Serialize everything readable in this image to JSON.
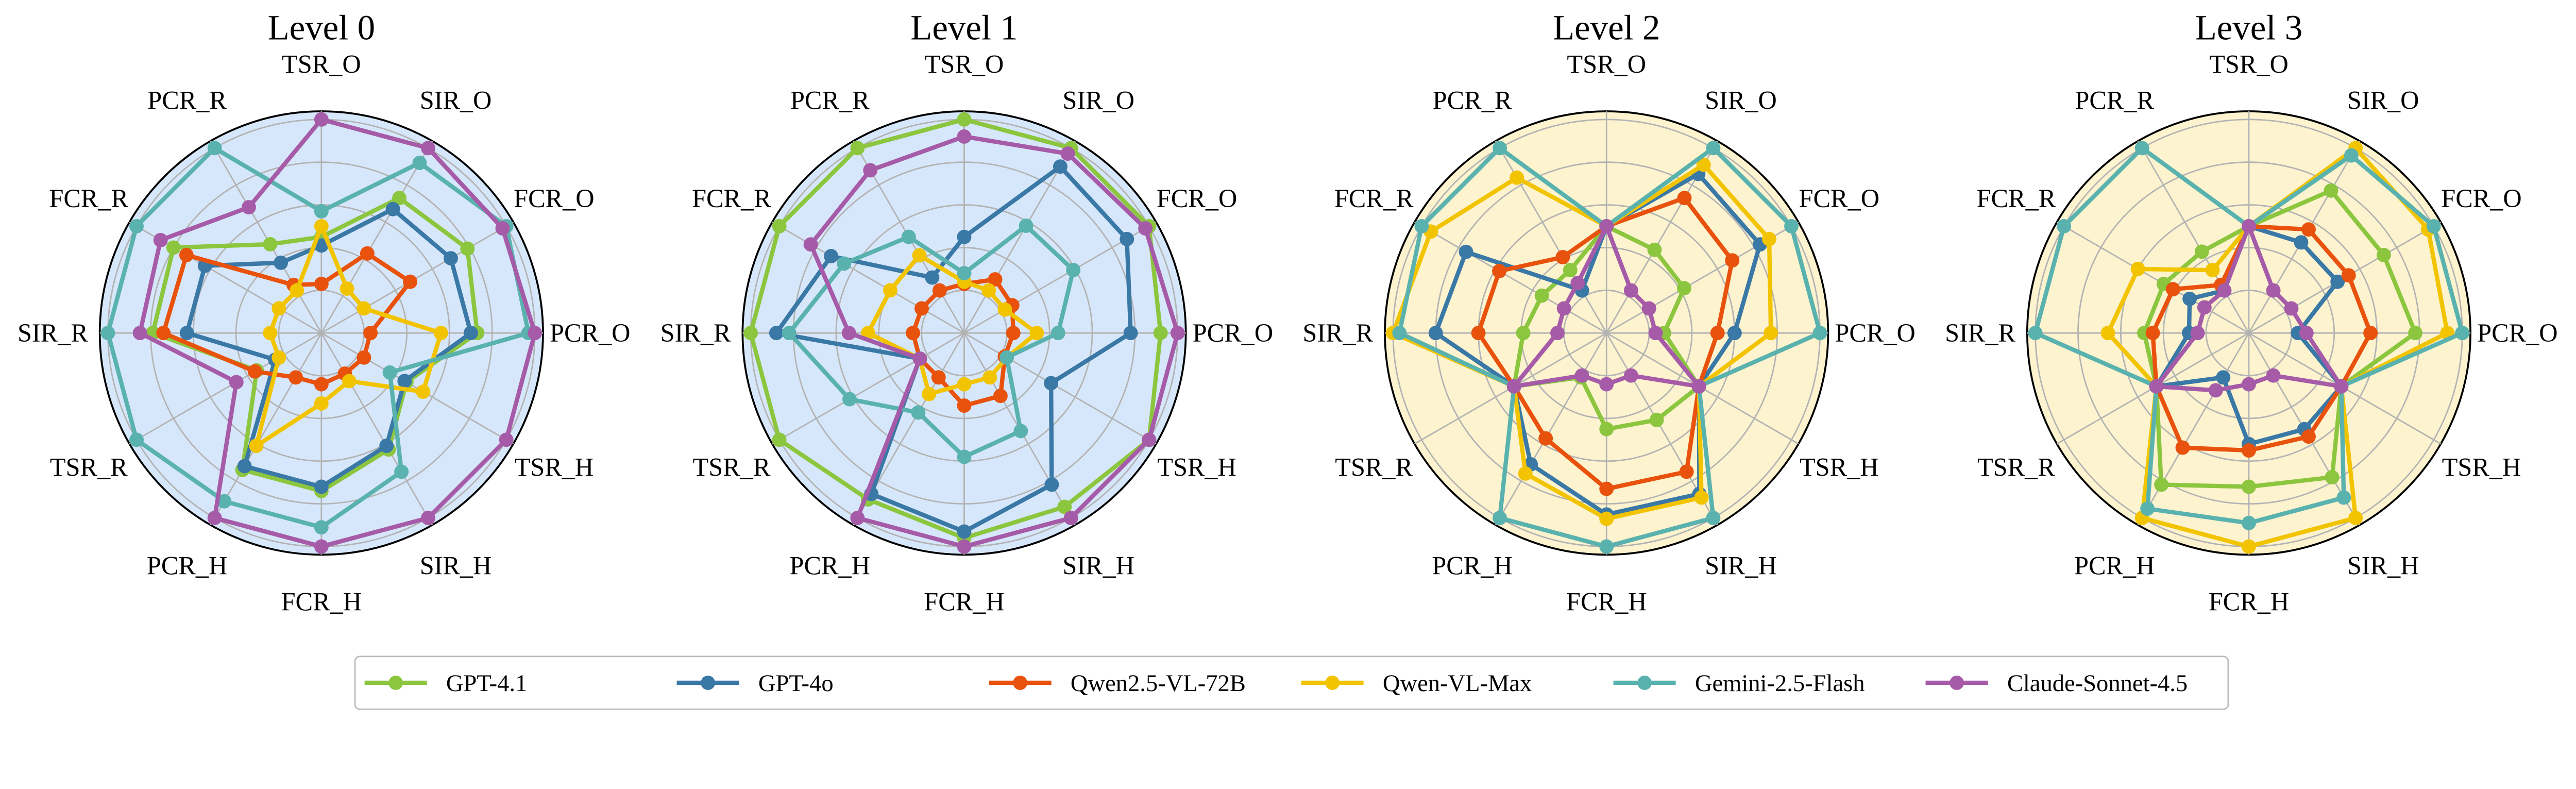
{
  "axes": [
    "TSR_O",
    "SIR_O",
    "FCR_O",
    "PCR_O",
    "TSR_H",
    "SIR_H",
    "FCR_H",
    "PCR_H",
    "TSR_R",
    "SIR_R",
    "FCR_R",
    "PCR_R"
  ],
  "legend": [
    {
      "name": "GPT-4.1",
      "color": "#8cc63f"
    },
    {
      "name": "GPT-4o",
      "color": "#3a78a6"
    },
    {
      "name": "Qwen2.5-VL-72B",
      "color": "#e8520c"
    },
    {
      "name": "Qwen-VL-Max",
      "color": "#f2c400"
    },
    {
      "name": "Gemini-2.5-Flash",
      "color": "#5ab2ae"
    },
    {
      "name": "Claude-Sonnet-4.5",
      "color": "#a65ba8"
    }
  ],
  "chart_data": [
    {
      "type": "radar",
      "title": "Level 0",
      "background": "#d7e7fb",
      "rlim": [
        0,
        1
      ],
      "grid": true,
      "series": [
        {
          "name": "GPT-4.1",
          "values": [
            0.45,
            0.73,
            0.79,
            0.73,
            0.46,
            0.63,
            0.74,
            0.74,
            0.35,
            0.79,
            0.8,
            0.48
          ]
        },
        {
          "name": "GPT-4o",
          "values": [
            0.41,
            0.67,
            0.7,
            0.7,
            0.45,
            0.61,
            0.72,
            0.72,
            0.25,
            0.63,
            0.63,
            0.38
          ]
        },
        {
          "name": "Qwen2.5-VL-72B",
          "values": [
            0.23,
            0.43,
            0.48,
            0.23,
            0.23,
            0.22,
            0.24,
            0.24,
            0.36,
            0.74,
            0.73,
            0.26
          ]
        },
        {
          "name": "Qwen-VL-Max",
          "values": [
            0.5,
            0.24,
            0.23,
            0.56,
            0.55,
            0.26,
            0.33,
            0.61,
            0.23,
            0.24,
            0.23,
            0.23
          ]
        },
        {
          "name": "Gemini-2.5-Flash",
          "values": [
            0.57,
            0.92,
            1.0,
            0.97,
            0.37,
            0.75,
            0.91,
            0.91,
            1.0,
            1.0,
            1.0,
            1.0
          ]
        },
        {
          "name": "Claude-Sonnet-4.5",
          "values": [
            1.0,
            1.0,
            0.98,
            1.0,
            1.0,
            1.0,
            1.0,
            1.0,
            0.46,
            0.85,
            0.87,
            0.68
          ]
        }
      ]
    },
    {
      "type": "radar",
      "title": "Level 1",
      "background": "#d7e7fb",
      "rlim": [
        0,
        1
      ],
      "grid": true,
      "series": [
        {
          "name": "GPT-4.1",
          "values": [
            1.0,
            1.0,
            1.0,
            0.92,
            1.0,
            0.94,
            0.96,
            0.9,
            1.0,
            1.0,
            1.0,
            1.0
          ]
        },
        {
          "name": "GPT-4o",
          "values": [
            0.45,
            0.9,
            0.88,
            0.78,
            0.47,
            0.82,
            0.93,
            0.87,
            0.24,
            0.88,
            0.72,
            0.3
          ]
        },
        {
          "name": "Qwen2.5-VL-72B",
          "values": [
            0.23,
            0.29,
            0.26,
            0.23,
            0.22,
            0.34,
            0.34,
            0.24,
            0.24,
            0.24,
            0.23,
            0.23
          ]
        },
        {
          "name": "Qwen-VL-Max",
          "values": [
            0.24,
            0.23,
            0.22,
            0.34,
            0.23,
            0.24,
            0.24,
            0.33,
            0.24,
            0.45,
            0.4,
            0.42
          ]
        },
        {
          "name": "Gemini-2.5-Flash",
          "values": [
            0.28,
            0.58,
            0.59,
            0.44,
            0.23,
            0.53,
            0.58,
            0.43,
            0.62,
            0.82,
            0.65,
            0.52
          ]
        },
        {
          "name": "Claude-Sonnet-4.5",
          "values": [
            0.92,
            0.97,
            0.98,
            1.0,
            1.0,
            1.0,
            1.0,
            1.0,
            0.24,
            0.54,
            0.83,
            0.88
          ]
        }
      ]
    },
    {
      "type": "radar",
      "title": "Level 2",
      "background": "#fdf3cf",
      "rlim": [
        0,
        1
      ],
      "grid": true,
      "series": [
        {
          "name": "GPT-4.1",
          "values": [
            0.5,
            0.45,
            0.42,
            0.27,
            0.5,
            0.47,
            0.45,
            0.24,
            0.5,
            0.39,
            0.35,
            0.34
          ]
        },
        {
          "name": "GPT-4o",
          "values": [
            0.5,
            0.86,
            0.83,
            0.6,
            0.5,
            0.87,
            0.85,
            0.71,
            0.5,
            0.8,
            0.76,
            0.23
          ]
        },
        {
          "name": "Qwen2.5-VL-72B",
          "values": [
            0.5,
            0.73,
            0.68,
            0.52,
            0.5,
            0.75,
            0.73,
            0.57,
            0.5,
            0.6,
            0.58,
            0.41
          ]
        },
        {
          "name": "Qwen-VL-Max",
          "values": [
            0.5,
            0.91,
            0.88,
            0.77,
            0.5,
            0.89,
            0.87,
            0.76,
            0.5,
            1.0,
            0.95,
            0.84
          ]
        },
        {
          "name": "Gemini-2.5-Flash",
          "values": [
            0.5,
            1.0,
            1.0,
            1.0,
            0.5,
            1.0,
            1.0,
            1.0,
            0.5,
            0.97,
            1.0,
            1.0
          ]
        },
        {
          "name": "Claude-Sonnet-4.5",
          "values": [
            0.5,
            0.23,
            0.23,
            0.23,
            0.5,
            0.23,
            0.24,
            0.23,
            0.5,
            0.23,
            0.23,
            0.27
          ]
        }
      ]
    },
    {
      "type": "radar",
      "title": "Level 3",
      "background": "#fdf3cf",
      "rlim": [
        0,
        1
      ],
      "grid": true,
      "series": [
        {
          "name": "GPT-4.1",
          "values": [
            0.5,
            0.77,
            0.73,
            0.78,
            0.5,
            0.78,
            0.72,
            0.82,
            0.5,
            0.49,
            0.46,
            0.44
          ]
        },
        {
          "name": "GPT-4o",
          "values": [
            0.5,
            0.49,
            0.48,
            0.23,
            0.5,
            0.52,
            0.52,
            0.24,
            0.5,
            0.28,
            0.32,
            0.23
          ]
        },
        {
          "name": "Qwen2.5-VL-72B",
          "values": [
            0.5,
            0.56,
            0.54,
            0.57,
            0.5,
            0.56,
            0.55,
            0.62,
            0.5,
            0.45,
            0.41,
            0.26
          ]
        },
        {
          "name": "Qwen-VL-Max",
          "values": [
            0.5,
            1.0,
            0.97,
            0.93,
            0.5,
            1.0,
            1.0,
            1.0,
            0.5,
            0.66,
            0.6,
            0.34
          ]
        },
        {
          "name": "Gemini-2.5-Flash",
          "values": [
            0.5,
            0.96,
            1.0,
            1.0,
            0.5,
            0.89,
            0.89,
            0.95,
            0.5,
            1.0,
            1.0,
            1.0
          ]
        },
        {
          "name": "Claude-Sonnet-4.5",
          "values": [
            0.5,
            0.23,
            0.23,
            0.27,
            0.5,
            0.23,
            0.24,
            0.31,
            0.5,
            0.24,
            0.24,
            0.23
          ]
        }
      ]
    }
  ]
}
